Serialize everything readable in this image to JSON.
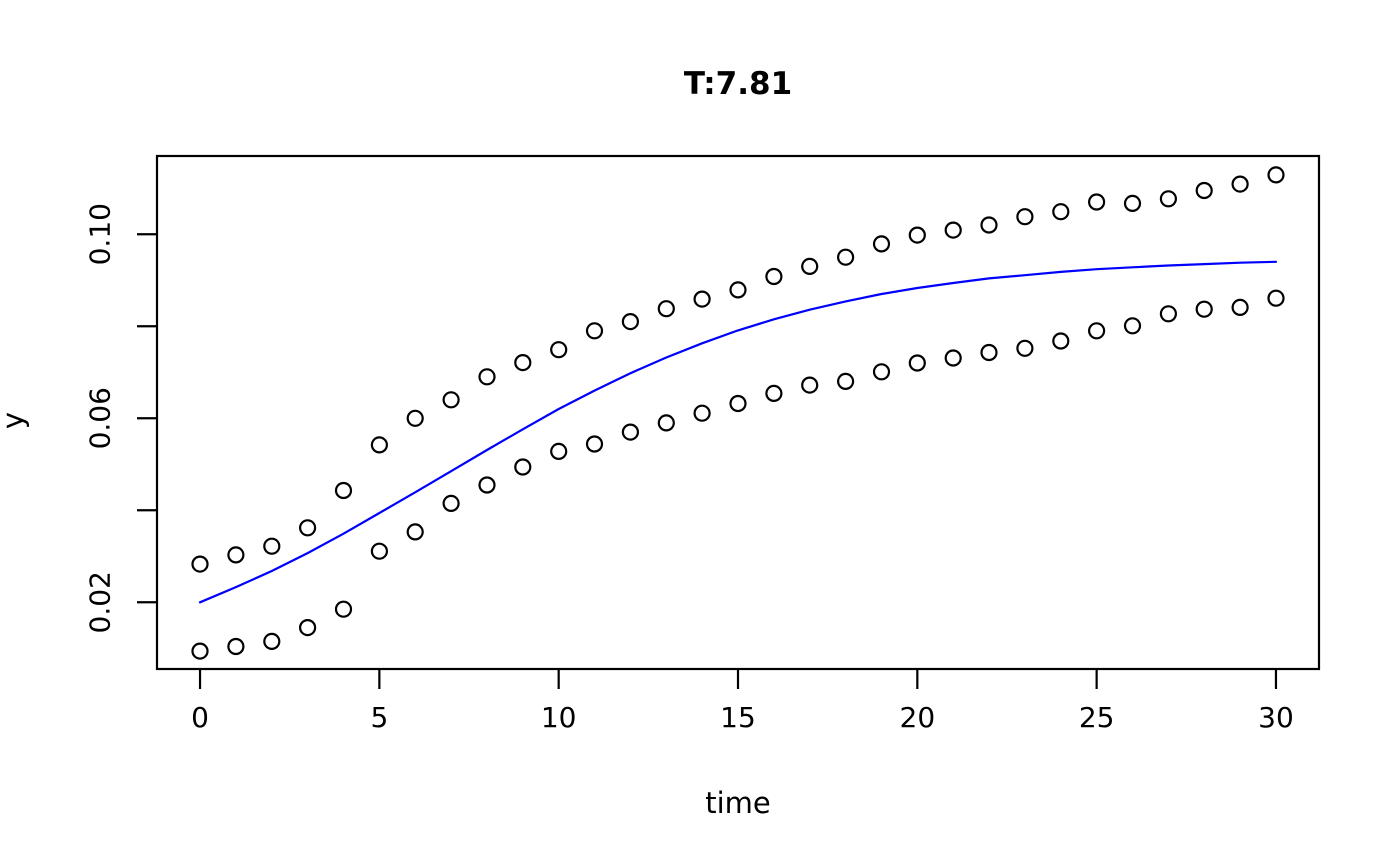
{
  "chart_data": {
    "type": "line+scatter",
    "title": "T:7.81",
    "xlabel": "time",
    "ylabel": "y",
    "xlim": [
      -1.2,
      31.2
    ],
    "ylim": [
      0.0055,
      0.117
    ],
    "x_ticks": [
      0,
      5,
      10,
      15,
      20,
      25,
      30
    ],
    "x_tick_labels": [
      "0",
      "5",
      "10",
      "15",
      "20",
      "25",
      "30"
    ],
    "y_ticks": [
      0.02,
      0.04,
      0.06,
      0.08,
      0.1
    ],
    "y_tick_labels": [
      "0.02",
      "",
      "0.06",
      "",
      "0.10"
    ],
    "grid": false,
    "legend": "none",
    "background_color": "#ffffff",
    "axis_color": "#000000",
    "x": [
      0,
      1,
      2,
      3,
      4,
      5,
      6,
      7,
      8,
      9,
      10,
      11,
      12,
      13,
      14,
      15,
      16,
      17,
      18,
      19,
      20,
      21,
      22,
      23,
      24,
      25,
      26,
      27,
      28,
      29,
      30
    ],
    "series": [
      {
        "name": "fitted-line",
        "type": "line",
        "color": "#0000ff",
        "values": [
          0.02,
          0.0233,
          0.0268,
          0.0307,
          0.0349,
          0.0394,
          0.0439,
          0.0485,
          0.0531,
          0.0576,
          0.062,
          0.066,
          0.0698,
          0.0732,
          0.0763,
          0.0791,
          0.0815,
          0.0836,
          0.0854,
          0.087,
          0.0883,
          0.0894,
          0.0904,
          0.0911,
          0.0918,
          0.0924,
          0.0928,
          0.0932,
          0.0935,
          0.0938,
          0.094
        ]
      },
      {
        "name": "upper-band-points",
        "type": "scatter",
        "marker": "open-circle",
        "color": "#000000",
        "values": [
          0.0283,
          0.0303,
          0.0322,
          0.0362,
          0.0443,
          0.0542,
          0.06,
          0.064,
          0.069,
          0.0721,
          0.0749,
          0.079,
          0.081,
          0.0838,
          0.0859,
          0.0879,
          0.0908,
          0.093,
          0.095,
          0.0979,
          0.0998,
          0.1009,
          0.102,
          0.1038,
          0.1049,
          0.107,
          0.1067,
          0.1077,
          0.1095,
          0.1109,
          0.1129
        ]
      },
      {
        "name": "lower-band-points",
        "type": "scatter",
        "marker": "open-circle",
        "color": "#000000",
        "values": [
          0.0094,
          0.0104,
          0.0115,
          0.0145,
          0.0185,
          0.0311,
          0.0353,
          0.0415,
          0.0455,
          0.0494,
          0.0528,
          0.0544,
          0.057,
          0.059,
          0.0611,
          0.0632,
          0.0654,
          0.0672,
          0.068,
          0.0701,
          0.072,
          0.0731,
          0.0743,
          0.0752,
          0.0768,
          0.079,
          0.0801,
          0.0827,
          0.0837,
          0.0841,
          0.0861
        ]
      }
    ]
  }
}
